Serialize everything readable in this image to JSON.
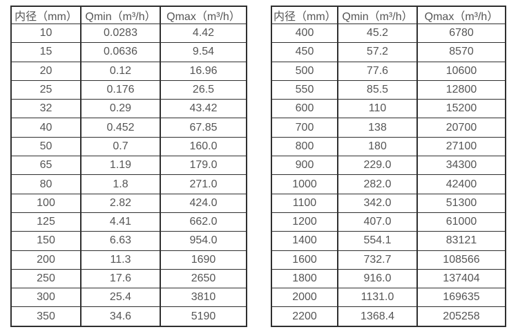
{
  "tables": [
    {
      "name": "small-diameters",
      "headers": [
        "内径（mm）",
        "Qmin（m³/h）",
        "Qmax（m³/h）"
      ],
      "rows": [
        [
          "10",
          "0.0283",
          "4.42"
        ],
        [
          "15",
          "0.0636",
          "9.54"
        ],
        [
          "20",
          "0.12",
          "16.96"
        ],
        [
          "25",
          "0.176",
          "26.5"
        ],
        [
          "32",
          "0.29",
          "43.42"
        ],
        [
          "40",
          "0.452",
          "67.85"
        ],
        [
          "50",
          "0.7",
          "160.0"
        ],
        [
          "65",
          "1.19",
          "179.0"
        ],
        [
          "80",
          "1.8",
          "271.0"
        ],
        [
          "100",
          "2.82",
          "424.0"
        ],
        [
          "125",
          "4.41",
          "662.0"
        ],
        [
          "150",
          "6.63",
          "954.0"
        ],
        [
          "200",
          "11.3",
          "1690"
        ],
        [
          "250",
          "17.6",
          "2650"
        ],
        [
          "300",
          "25.4",
          "3810"
        ],
        [
          "350",
          "34.6",
          "5190"
        ]
      ]
    },
    {
      "name": "large-diameters",
      "headers": [
        "内径（mm）",
        "Qmin（m³/h）",
        "Qmax（m³/h）"
      ],
      "rows": [
        [
          "400",
          "45.2",
          "6780"
        ],
        [
          "450",
          "57.2",
          "8570"
        ],
        [
          "500",
          "77.6",
          "10600"
        ],
        [
          "550",
          "85.5",
          "12800"
        ],
        [
          "600",
          "110",
          "15200"
        ],
        [
          "700",
          "138",
          "20700"
        ],
        [
          "800",
          "180",
          "27100"
        ],
        [
          "900",
          "229.0",
          "34300"
        ],
        [
          "1000",
          "282.0",
          "42400"
        ],
        [
          "1100",
          "342.0",
          "51300"
        ],
        [
          "1200",
          "407.0",
          "61000"
        ],
        [
          "1400",
          "554.1",
          "83121"
        ],
        [
          "1600",
          "732.7",
          "108566"
        ],
        [
          "1800",
          "916.0",
          "137404"
        ],
        [
          "2000",
          "1131.0",
          "169635"
        ],
        [
          "2200",
          "1368.4",
          "205258"
        ]
      ]
    }
  ],
  "colors": {
    "border": "#2e2e2e",
    "text": "#555555",
    "background": "#ffffff"
  }
}
